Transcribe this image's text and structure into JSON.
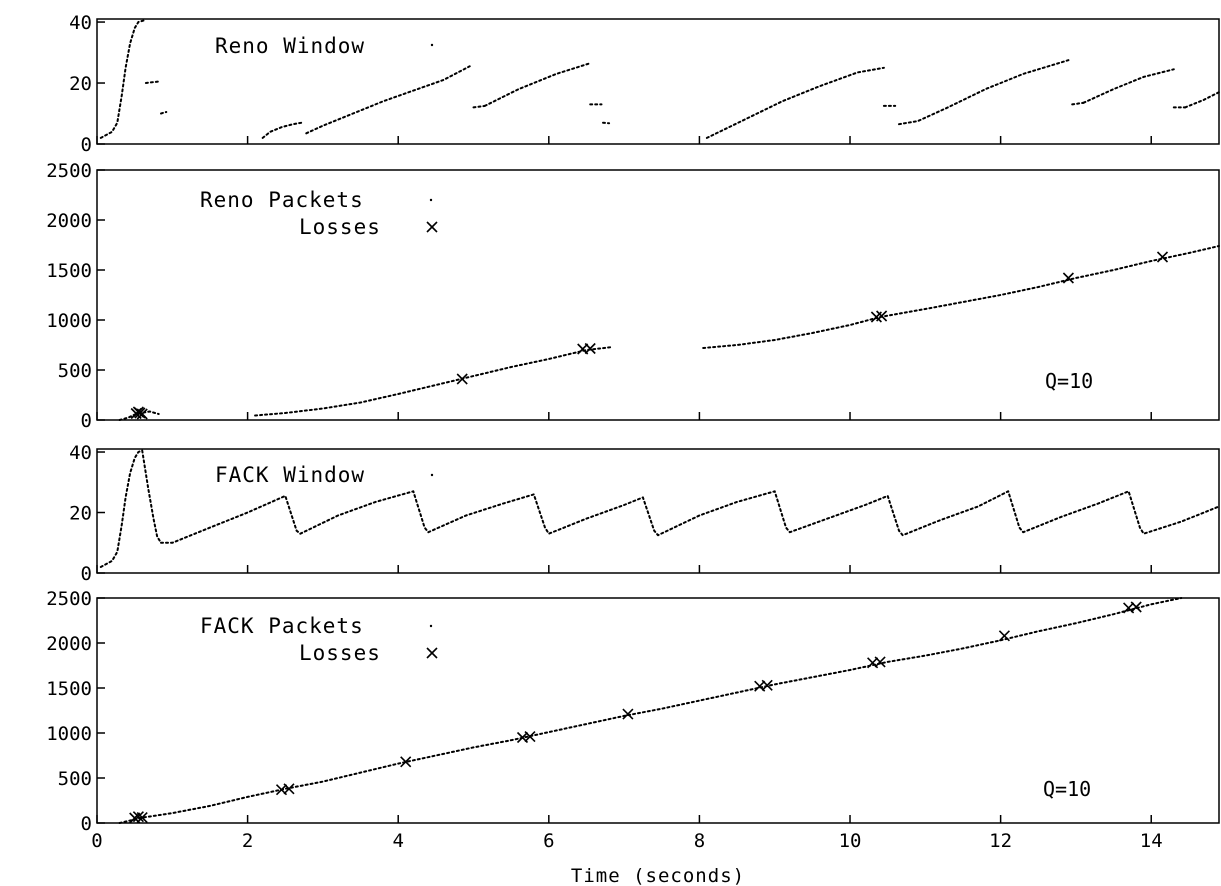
{
  "chart_data": [
    {
      "type": "line",
      "title": "",
      "xlabel": "",
      "ylabel": "",
      "xlim": [
        0,
        14.9
      ],
      "ylim": [
        0,
        41
      ],
      "yticks": [
        0,
        20,
        40
      ],
      "xticks": [
        0,
        2,
        4,
        6,
        8,
        10,
        12,
        14
      ],
      "legend": {
        "position": "top-left",
        "entries": [
          "Reno Window"
        ]
      },
      "series": [
        {
          "name": "Reno Window",
          "segments": [
            [
              [
                0.05,
                2
              ],
              [
                0.2,
                4
              ],
              [
                0.27,
                7
              ],
              [
                0.33,
                16
              ],
              [
                0.38,
                25
              ],
              [
                0.44,
                33
              ],
              [
                0.5,
                38
              ],
              [
                0.55,
                40
              ],
              [
                0.62,
                40.5
              ]
            ],
            [
              [
                0.65,
                20
              ],
              [
                0.82,
                20.5
              ]
            ],
            [
              [
                0.85,
                10
              ],
              [
                0.92,
                10.5
              ]
            ],
            [
              [
                2.2,
                2
              ],
              [
                2.3,
                4
              ],
              [
                2.45,
                5.5
              ],
              [
                2.6,
                6.5
              ],
              [
                2.72,
                7
              ]
            ],
            [
              [
                2.78,
                3.5
              ],
              [
                3.0,
                6
              ],
              [
                3.4,
                10
              ],
              [
                3.8,
                14
              ],
              [
                4.2,
                17.5
              ],
              [
                4.6,
                21
              ],
              [
                4.95,
                25.5
              ]
            ],
            [
              [
                5.0,
                12
              ],
              [
                5.15,
                12.5
              ]
            ],
            [
              [
                5.15,
                12.5
              ],
              [
                5.6,
                18
              ],
              [
                6.1,
                23
              ],
              [
                6.55,
                26.5
              ]
            ],
            [
              [
                6.55,
                13
              ],
              [
                6.7,
                13
              ]
            ],
            [
              [
                6.72,
                7
              ],
              [
                6.8,
                6.8
              ]
            ],
            [
              [
                8.1,
                2
              ],
              [
                8.6,
                8
              ],
              [
                9.1,
                14
              ],
              [
                9.6,
                19
              ],
              [
                10.1,
                23.5
              ],
              [
                10.45,
                25
              ]
            ],
            [
              [
                10.45,
                12.5
              ],
              [
                10.6,
                12.5
              ]
            ],
            [
              [
                10.65,
                6.5
              ],
              [
                10.9,
                7.5
              ],
              [
                11.3,
                12
              ],
              [
                11.8,
                18
              ],
              [
                12.3,
                23
              ],
              [
                12.9,
                27.5
              ]
            ],
            [
              [
                12.95,
                13
              ],
              [
                13.1,
                13.5
              ]
            ],
            [
              [
                13.1,
                13.5
              ],
              [
                13.5,
                18
              ],
              [
                13.9,
                22
              ],
              [
                14.3,
                24.5
              ]
            ],
            [
              [
                14.3,
                12
              ],
              [
                14.45,
                12
              ]
            ],
            [
              [
                14.45,
                12
              ],
              [
                14.7,
                14.5
              ],
              [
                14.9,
                17
              ]
            ]
          ]
        }
      ]
    },
    {
      "type": "scatter",
      "title": "",
      "xlabel": "",
      "ylabel": "",
      "xlim": [
        0,
        14.9
      ],
      "ylim": [
        0,
        2500
      ],
      "yticks": [
        0,
        500,
        1000,
        1500,
        2000,
        2500
      ],
      "xticks": [
        0,
        2,
        4,
        6,
        8,
        10,
        12,
        14
      ],
      "legend": {
        "position": "top-left",
        "entries": [
          "Reno Packets",
          "Losses"
        ]
      },
      "annotation": "Q=10",
      "series": [
        {
          "name": "Reno Packets",
          "segments": [
            [
              [
                0.3,
                0
              ],
              [
                0.42,
                25
              ],
              [
                0.5,
                55
              ],
              [
                0.58,
                70
              ],
              [
                0.7,
                85
              ],
              [
                0.82,
                60
              ]
            ],
            [
              [
                2.1,
                45
              ],
              [
                2.5,
                70
              ],
              [
                3.0,
                115
              ],
              [
                3.5,
                175
              ],
              [
                4.0,
                260
              ],
              [
                4.5,
                350
              ],
              [
                5.0,
                440
              ],
              [
                5.5,
                530
              ],
              [
                6.0,
                610
              ],
              [
                6.5,
                700
              ],
              [
                6.85,
                730
              ]
            ],
            [
              [
                8.05,
                720
              ],
              [
                8.5,
                750
              ],
              [
                9.0,
                800
              ],
              [
                9.5,
                870
              ],
              [
                10.0,
                950
              ],
              [
                10.4,
                1030
              ],
              [
                11.0,
                1110
              ],
              [
                11.5,
                1180
              ],
              [
                12.0,
                1250
              ],
              [
                12.5,
                1330
              ],
              [
                13.0,
                1420
              ],
              [
                13.5,
                1500
              ],
              [
                14.0,
                1590
              ],
              [
                14.5,
                1670
              ],
              [
                14.9,
                1740
              ]
            ]
          ]
        },
        {
          "name": "Losses",
          "points": [
            [
              0.52,
              65
            ],
            [
              0.55,
              80
            ],
            [
              0.57,
              70
            ],
            [
              0.6,
              60
            ],
            [
              4.85,
              410
            ],
            [
              6.45,
              710
            ],
            [
              6.55,
              715
            ],
            [
              10.35,
              1030
            ],
            [
              10.42,
              1040
            ],
            [
              12.9,
              1420
            ],
            [
              14.15,
              1630
            ]
          ]
        }
      ]
    },
    {
      "type": "line",
      "title": "",
      "xlabel": "",
      "ylabel": "",
      "xlim": [
        0,
        14.9
      ],
      "ylim": [
        0,
        41
      ],
      "yticks": [
        0,
        20,
        40
      ],
      "xticks": [
        0,
        2,
        4,
        6,
        8,
        10,
        12,
        14
      ],
      "legend": {
        "position": "top-left",
        "entries": [
          "FACK Window"
        ]
      },
      "series": [
        {
          "name": "FACK Window",
          "segments": [
            [
              [
                0.05,
                2
              ],
              [
                0.2,
                4
              ],
              [
                0.27,
                7
              ],
              [
                0.33,
                16
              ],
              [
                0.38,
                25
              ],
              [
                0.44,
                33
              ],
              [
                0.5,
                38
              ],
              [
                0.55,
                40
              ],
              [
                0.6,
                40.5
              ],
              [
                0.68,
                28
              ],
              [
                0.75,
                18
              ],
              [
                0.8,
                12
              ],
              [
                0.85,
                10
              ]
            ],
            [
              [
                0.85,
                10
              ],
              [
                1.0,
                10
              ],
              [
                1.5,
                15
              ],
              [
                2.0,
                20
              ],
              [
                2.5,
                25.5
              ],
              [
                2.65,
                14
              ],
              [
                2.7,
                13
              ],
              [
                3.2,
                19
              ],
              [
                3.7,
                23.5
              ],
              [
                4.2,
                27
              ],
              [
                4.35,
                15
              ],
              [
                4.4,
                13.5
              ],
              [
                4.9,
                19
              ],
              [
                5.4,
                23
              ],
              [
                5.8,
                26
              ],
              [
                5.95,
                15
              ],
              [
                6.0,
                13
              ],
              [
                6.5,
                18
              ],
              [
                7.0,
                22.5
              ],
              [
                7.25,
                25
              ],
              [
                7.4,
                14
              ],
              [
                7.45,
                12.5
              ],
              [
                8.0,
                19
              ],
              [
                8.5,
                23.5
              ],
              [
                9.0,
                27
              ],
              [
                9.15,
                15
              ],
              [
                9.2,
                13.5
              ],
              [
                9.7,
                18
              ],
              [
                10.2,
                22.5
              ],
              [
                10.5,
                25.5
              ],
              [
                10.65,
                14
              ],
              [
                10.7,
                12.5
              ],
              [
                11.2,
                17.5
              ],
              [
                11.7,
                22
              ],
              [
                12.1,
                27
              ],
              [
                12.25,
                15
              ],
              [
                12.3,
                13.5
              ],
              [
                12.8,
                18.5
              ],
              [
                13.3,
                23
              ],
              [
                13.7,
                27
              ],
              [
                13.85,
                15
              ],
              [
                13.9,
                13
              ],
              [
                14.4,
                17
              ],
              [
                14.9,
                22
              ]
            ]
          ]
        }
      ]
    },
    {
      "type": "scatter",
      "title": "",
      "xlabel": "Time (seconds)",
      "ylabel": "",
      "xlim": [
        0,
        14.9
      ],
      "ylim": [
        0,
        2500
      ],
      "yticks": [
        0,
        500,
        1000,
        1500,
        2000,
        2500
      ],
      "xticks": [
        0,
        2,
        4,
        6,
        8,
        10,
        12,
        14
      ],
      "legend": {
        "position": "top-left",
        "entries": [
          "FACK Packets",
          "Losses"
        ]
      },
      "annotation": "Q=10",
      "series": [
        {
          "name": "FACK Packets",
          "segments": [
            [
              [
                0.3,
                0
              ],
              [
                0.45,
                30
              ],
              [
                0.6,
                60
              ],
              [
                0.8,
                85
              ],
              [
                1.0,
                110
              ],
              [
                1.5,
                190
              ],
              [
                2.0,
                290
              ],
              [
                2.5,
                380
              ],
              [
                3.0,
                460
              ],
              [
                3.5,
                560
              ],
              [
                4.0,
                660
              ],
              [
                4.5,
                750
              ],
              [
                5.0,
                840
              ],
              [
                5.5,
                920
              ],
              [
                6.0,
                1010
              ],
              [
                6.5,
                1100
              ],
              [
                7.0,
                1190
              ],
              [
                7.5,
                1270
              ],
              [
                8.0,
                1360
              ],
              [
                8.5,
                1450
              ],
              [
                9.0,
                1540
              ],
              [
                9.5,
                1620
              ],
              [
                10.0,
                1700
              ],
              [
                10.5,
                1790
              ],
              [
                11.0,
                1860
              ],
              [
                11.5,
                1940
              ],
              [
                12.0,
                2030
              ],
              [
                12.5,
                2130
              ],
              [
                13.0,
                2220
              ],
              [
                13.5,
                2320
              ],
              [
                14.0,
                2430
              ],
              [
                14.4,
                2500
              ]
            ]
          ]
        },
        {
          "name": "Losses",
          "points": [
            [
              0.5,
              55
            ],
            [
              0.55,
              70
            ],
            [
              0.6,
              60
            ],
            [
              2.45,
              370
            ],
            [
              2.55,
              380
            ],
            [
              4.1,
              680
            ],
            [
              5.65,
              950
            ],
            [
              5.75,
              960
            ],
            [
              7.05,
              1210
            ],
            [
              8.8,
              1520
            ],
            [
              8.9,
              1530
            ],
            [
              10.3,
              1780
            ],
            [
              10.4,
              1790
            ],
            [
              12.05,
              2080
            ],
            [
              13.7,
              2390
            ],
            [
              13.8,
              2400
            ]
          ]
        }
      ]
    }
  ],
  "labels": {
    "panel1_legend": "Reno Window",
    "panel2_legend_1": "Reno Packets",
    "panel2_legend_2": "Losses",
    "panel2_annot": "Q=10",
    "panel3_legend": "FACK Window",
    "panel4_legend_1": "FACK Packets",
    "panel4_legend_2": "Losses",
    "panel4_annot": "Q=10",
    "x_axis_title": "Time (seconds)"
  }
}
